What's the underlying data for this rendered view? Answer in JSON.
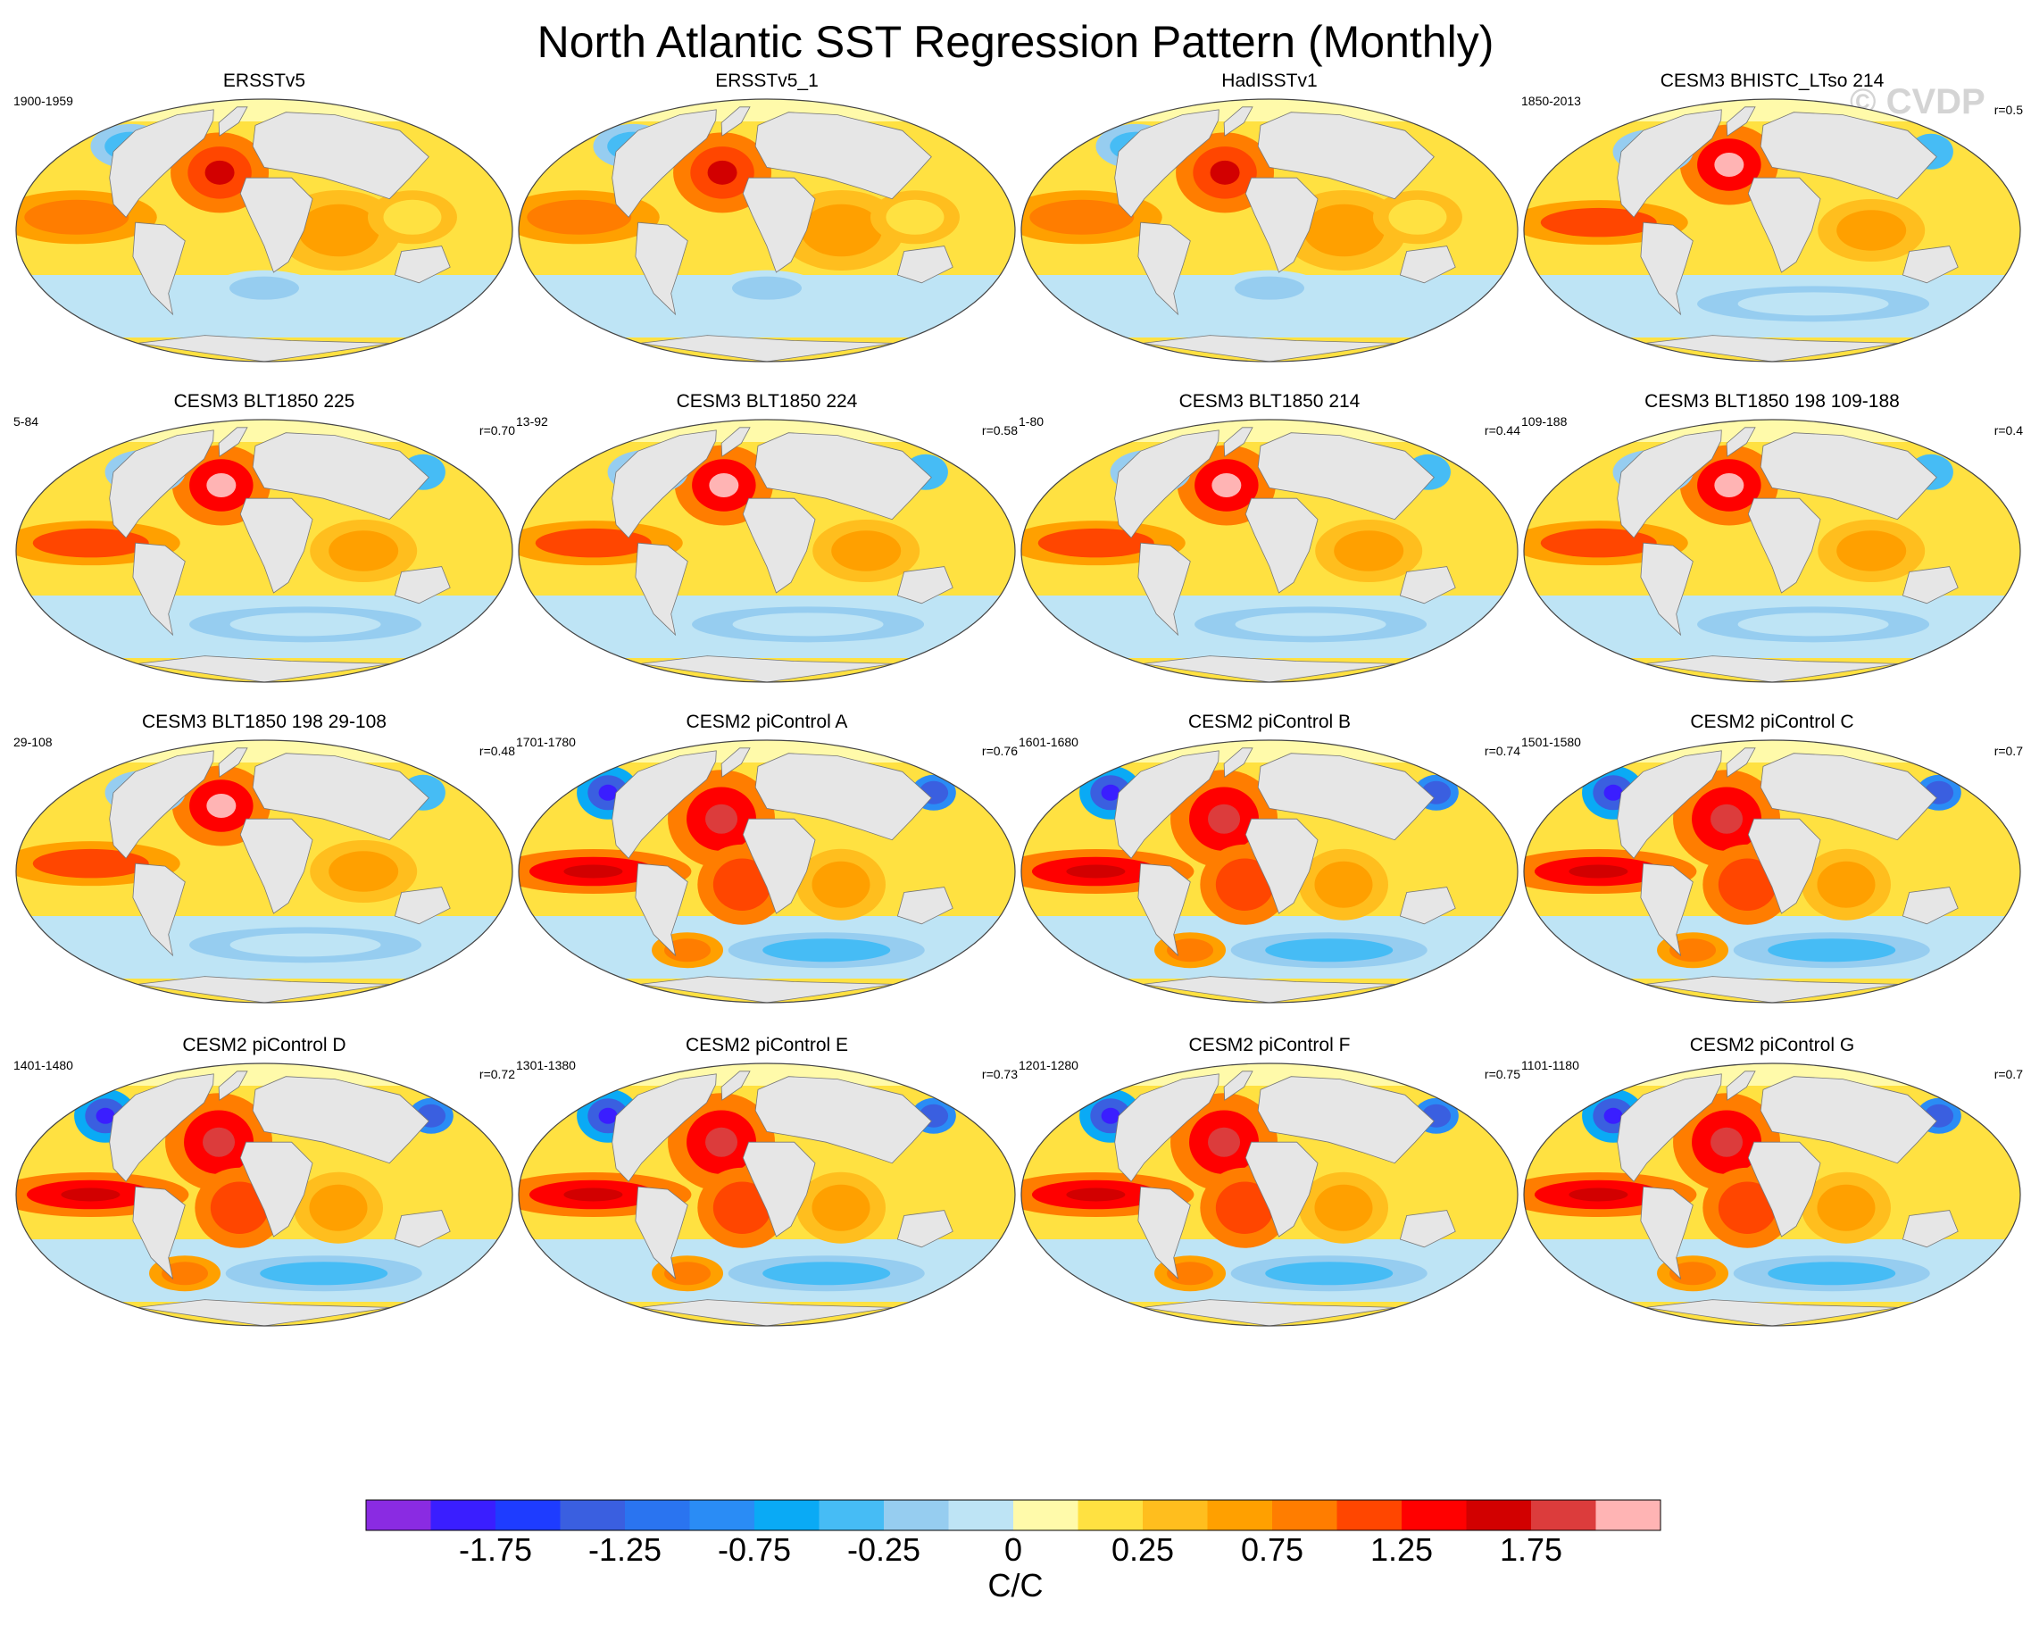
{
  "title": "North Atlantic SST Regression Pattern (Monthly)",
  "watermark": "© CVDP",
  "panels": [
    {
      "title": "ERSSTv5",
      "left": "1900-1959",
      "right": "",
      "pattern": "obs"
    },
    {
      "title": "ERSSTv5_1",
      "left": "",
      "right": "",
      "pattern": "obs"
    },
    {
      "title": "HadISSTv1",
      "left": "",
      "right": "",
      "pattern": "obs"
    },
    {
      "title": "CESM3 BHISTC_LTso 214",
      "left": "1850-2013",
      "right": "r=0.5",
      "pattern": "cesm3"
    },
    {
      "title": "CESM3 BLT1850 225",
      "left": "5-84",
      "right": "r=0.70",
      "pattern": "cesm3"
    },
    {
      "title": "CESM3 BLT1850 224",
      "left": "13-92",
      "right": "r=0.58",
      "pattern": "cesm3"
    },
    {
      "title": "CESM3 BLT1850 214",
      "left": "1-80",
      "right": "r=0.44",
      "pattern": "cesm3"
    },
    {
      "title": "CESM3 BLT1850 198 109-188",
      "left": "109-188",
      "right": "r=0.4",
      "pattern": "cesm3"
    },
    {
      "title": "CESM3 BLT1850 198 29-108",
      "left": "29-108",
      "right": "r=0.48",
      "pattern": "cesm3"
    },
    {
      "title": "CESM2 piControl A",
      "left": "1701-1780",
      "right": "r=0.76",
      "pattern": "cesm2"
    },
    {
      "title": "CESM2 piControl B",
      "left": "1601-1680",
      "right": "r=0.74",
      "pattern": "cesm2"
    },
    {
      "title": "CESM2 piControl C",
      "left": "1501-1580",
      "right": "r=0.7",
      "pattern": "cesm2"
    },
    {
      "title": "CESM2 piControl D",
      "left": "1401-1480",
      "right": "r=0.72",
      "pattern": "cesm2"
    },
    {
      "title": "CESM2 piControl E",
      "left": "1301-1380",
      "right": "r=0.73",
      "pattern": "cesm2"
    },
    {
      "title": "CESM2 piControl F",
      "left": "1201-1280",
      "right": "r=0.75",
      "pattern": "cesm2"
    },
    {
      "title": "CESM2 piControl G",
      "left": "1101-1180",
      "right": "r=0.7",
      "pattern": "cesm2"
    }
  ],
  "colorbar": {
    "colors": [
      "#8a2be2",
      "#3a1eff",
      "#1e3cff",
      "#3a5fe0",
      "#2a74f0",
      "#2a8cf5",
      "#0aaaf5",
      "#46bcf5",
      "#96cdf0",
      "#bee4f5",
      "#fffaaa",
      "#ffe141",
      "#ffbe1e",
      "#ffa000",
      "#ff7d00",
      "#ff4600",
      "#ff0000",
      "#d20000",
      "#dc3c3c",
      "#ffb4b4"
    ],
    "labels": [
      "-1.75",
      "-1.25",
      "-0.75",
      "-0.25",
      "0",
      "0.25",
      "0.75",
      "1.25",
      "1.75"
    ],
    "units": "C/C"
  },
  "land_color": "#e6e6e6"
}
